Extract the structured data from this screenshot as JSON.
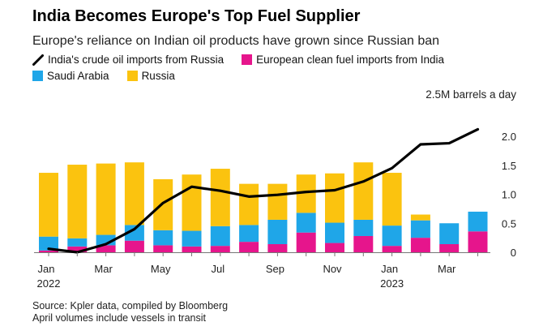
{
  "title": "India Becomes Europe's Top Fuel Supplier",
  "subtitle": "Europe's reliance on Indian oil products have grown since Russian ban",
  "legend": {
    "line": "India's crude oil imports from Russia",
    "magenta": "European clean fuel imports from India",
    "blue": "Saudi Arabia",
    "yellow": "Russia"
  },
  "colors": {
    "line": "#000000",
    "magenta": "#e6158c",
    "blue": "#1fa6e8",
    "yellow": "#fbc30f"
  },
  "source": "Source: Kpler data, compiled by Bloomberg",
  "note": "April volumes include vessels in transit",
  "chart_data": {
    "type": "bar",
    "stacked": true,
    "unit_label": "2.5M barrels a day",
    "categories": [
      "Jan 2022",
      "Feb 2022",
      "Mar 2022",
      "Apr 2022",
      "May 2022",
      "Jun 2022",
      "Jul 2022",
      "Aug 2022",
      "Sep 2022",
      "Oct 2022",
      "Nov 2022",
      "Dec 2022",
      "Jan 2023",
      "Feb 2023",
      "Mar 2023",
      "Apr 2023"
    ],
    "x_tick_labels": [
      "Jan",
      "",
      "Mar",
      "",
      "May",
      "",
      "Jul",
      "",
      "Sep",
      "",
      "Nov",
      "",
      "Jan",
      "",
      "Mar",
      ""
    ],
    "year_labels": [
      "2022",
      "",
      "",
      "",
      "",
      "",
      "",
      "",
      "",
      "",
      "",
      "",
      "2023",
      "",
      "",
      ""
    ],
    "series": [
      {
        "name": "European clean fuel imports from India",
        "values": [
          0.03,
          0.1,
          0.12,
          0.2,
          0.12,
          0.1,
          0.11,
          0.18,
          0.14,
          0.34,
          0.16,
          0.28,
          0.11,
          0.25,
          0.14,
          0.36
        ]
      },
      {
        "name": "Saudi Arabia",
        "values": [
          0.24,
          0.14,
          0.18,
          0.27,
          0.26,
          0.27,
          0.34,
          0.29,
          0.42,
          0.34,
          0.35,
          0.28,
          0.35,
          0.3,
          0.36,
          0.34
        ]
      },
      {
        "name": "Russia",
        "values": [
          1.1,
          1.27,
          1.23,
          1.08,
          0.88,
          0.97,
          0.99,
          0.71,
          0.62,
          0.66,
          0.85,
          0.99,
          0.91,
          0.1,
          0,
          0
        ]
      }
    ],
    "line": {
      "name": "India's crude oil imports from Russia",
      "values": [
        0.06,
        0.0,
        0.14,
        0.4,
        0.85,
        1.13,
        1.06,
        0.96,
        0.99,
        1.04,
        1.07,
        1.22,
        1.45,
        1.86,
        1.88,
        2.12
      ]
    },
    "ylim": [
      0,
      2.5
    ],
    "yticks": [
      0,
      0.5,
      1.0,
      1.5,
      2.0
    ],
    "ytick_labels": [
      "0",
      "0.5",
      "1.0",
      "1.5",
      "2.0"
    ],
    "grid": false,
    "legend_position": "top-left"
  }
}
